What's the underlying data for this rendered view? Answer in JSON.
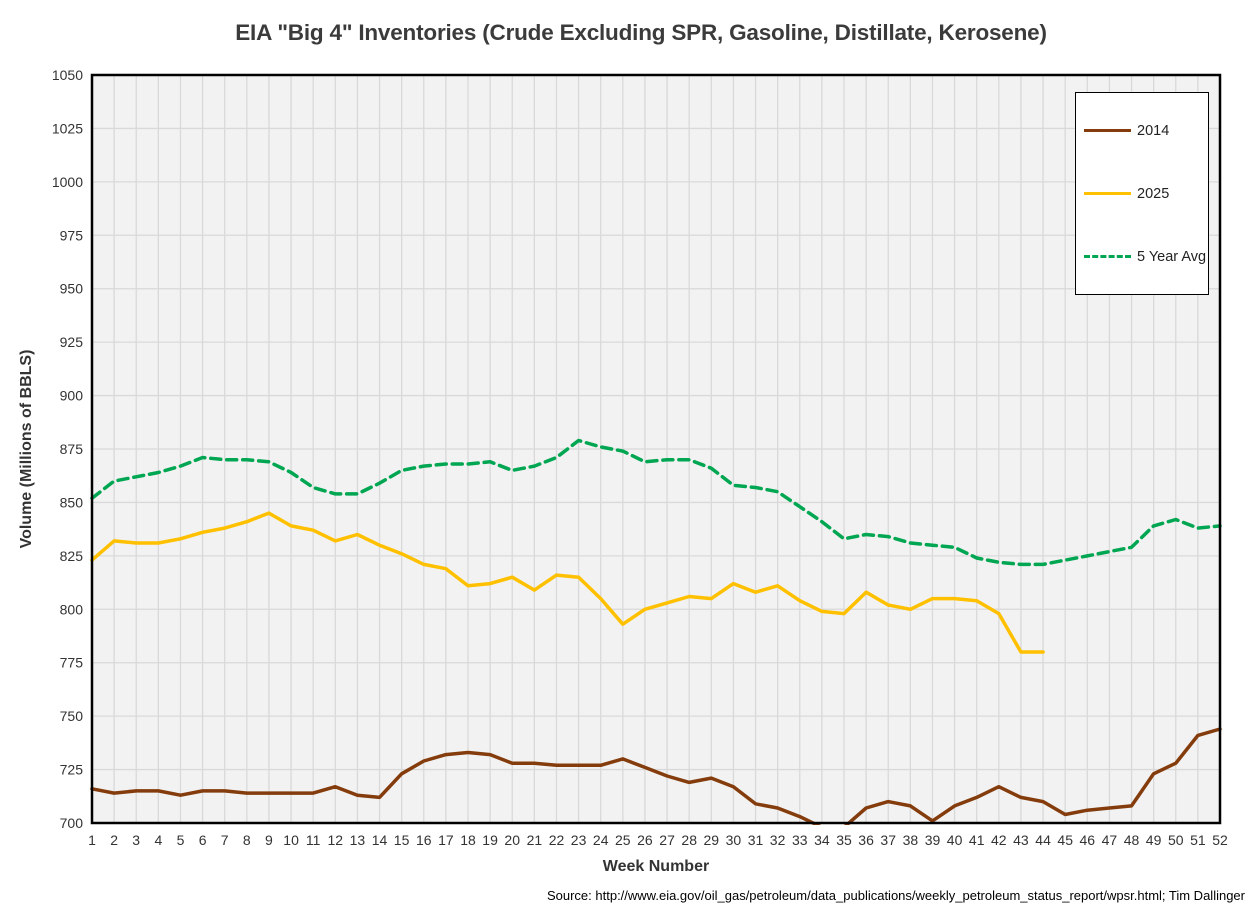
{
  "chart_data": {
    "type": "line",
    "title": "EIA \"Big 4\" Inventories (Crude Excluding SPR, Gasoline, Distillate, Kerosene)",
    "xlabel": "Week Number",
    "ylabel": "Volume (Millions of BBLS)",
    "x_range": [
      1,
      52
    ],
    "ylim": [
      700,
      1050
    ],
    "grid": true,
    "legend_position": "top-right-inside",
    "plot_bg": "#F2F2F2",
    "grid_color": "#D9D9D9",
    "border_color": "#000000",
    "tick_color": "#333333",
    "x_ticks": [
      1,
      2,
      3,
      4,
      5,
      6,
      7,
      8,
      9,
      10,
      11,
      12,
      13,
      14,
      15,
      16,
      17,
      18,
      19,
      20,
      21,
      22,
      23,
      24,
      25,
      26,
      27,
      28,
      29,
      30,
      31,
      32,
      33,
      34,
      35,
      36,
      37,
      38,
      39,
      40,
      41,
      42,
      43,
      44,
      45,
      46,
      47,
      48,
      49,
      50,
      51,
      52
    ],
    "y_ticks": [
      700,
      725,
      750,
      775,
      800,
      825,
      850,
      875,
      900,
      925,
      950,
      975,
      1000,
      1025,
      1050
    ],
    "series": [
      {
        "name": "2014",
        "color": "#843C0C",
        "style": "solid",
        "start_week": 1,
        "values": [
          716,
          714,
          715,
          715,
          713,
          715,
          715,
          714,
          714,
          714,
          714,
          717,
          713,
          712,
          723,
          729,
          732,
          733,
          732,
          728,
          728,
          727,
          727,
          727,
          730,
          726,
          722,
          719,
          721,
          717,
          709,
          707,
          703,
          698,
          698,
          707,
          710,
          708,
          701,
          708,
          712,
          717,
          712,
          710,
          704,
          706,
          707,
          708,
          723,
          728,
          741,
          744
        ]
      },
      {
        "name": "2025",
        "color": "#FFC000",
        "style": "solid",
        "start_week": 1,
        "values": [
          823,
          832,
          831,
          831,
          833,
          836,
          838,
          841,
          845,
          839,
          837,
          832,
          835,
          830,
          826,
          821,
          819,
          811,
          812,
          815,
          809,
          816,
          815,
          805,
          793,
          800,
          803,
          806,
          805,
          812,
          808,
          811,
          804,
          799,
          798,
          808,
          802,
          800,
          805,
          805,
          804,
          798,
          780,
          780
        ]
      },
      {
        "name": "5 Year Avg",
        "color": "#00A651",
        "style": "dashed",
        "start_week": 1,
        "values": [
          852,
          860,
          862,
          864,
          867,
          871,
          870,
          870,
          869,
          864,
          857,
          854,
          854,
          859,
          865,
          867,
          868,
          868,
          869,
          865,
          867,
          871,
          879,
          876,
          874,
          869,
          870,
          870,
          866,
          858,
          857,
          855,
          848,
          841,
          833,
          835,
          834,
          831,
          830,
          829,
          824,
          822,
          821,
          821,
          823,
          825,
          827,
          829,
          839,
          842,
          838,
          839
        ]
      }
    ],
    "source_note": "Source: http://www.eia.gov/oil_gas/petroleum/data_publications/weekly_petroleum_status_report/wpsr.html; Tim Dallinger"
  }
}
